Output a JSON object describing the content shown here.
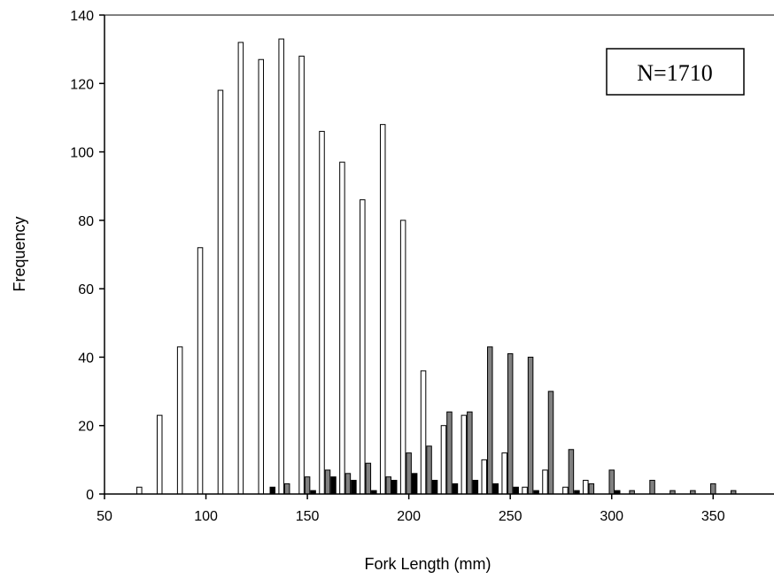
{
  "chart_data": {
    "type": "bar",
    "xlabel": "Fork Length (mm)",
    "ylabel": "Frequency",
    "xlim": [
      50,
      380
    ],
    "ylim": [
      0,
      140
    ],
    "x_ticks": [
      50,
      100,
      150,
      200,
      250,
      300,
      350
    ],
    "y_ticks": [
      0,
      20,
      40,
      60,
      80,
      100,
      120,
      140
    ],
    "grid": false,
    "annotation": "N=1710",
    "series": [
      {
        "color": "#ffffff",
        "x": [
          70,
          80,
          90,
          100,
          110,
          120,
          130,
          140,
          150,
          160,
          170,
          180,
          190,
          200,
          210,
          220,
          230,
          240,
          250,
          260,
          270,
          280,
          290
        ],
        "values": [
          2,
          23,
          43,
          72,
          118,
          132,
          127,
          133,
          128,
          106,
          97,
          86,
          108,
          80,
          36,
          20,
          23,
          10,
          12,
          2,
          7,
          2,
          4
        ]
      },
      {
        "color": "#808080",
        "x": [
          130,
          140,
          150,
          160,
          170,
          180,
          190,
          200,
          210,
          220,
          230,
          240,
          250,
          260,
          270,
          280,
          290,
          300,
          310,
          320,
          330,
          340,
          350,
          360
        ],
        "values": [
          0,
          3,
          5,
          7,
          6,
          9,
          5,
          12,
          14,
          24,
          24,
          43,
          41,
          40,
          30,
          13,
          3,
          7,
          1,
          4,
          1,
          1,
          3,
          1
        ]
      },
      {
        "color": "#000000",
        "x": [
          130,
          140,
          150,
          160,
          170,
          180,
          190,
          200,
          210,
          220,
          230,
          240,
          250,
          260,
          270,
          280,
          290,
          300,
          310,
          320,
          330,
          340,
          350,
          360
        ],
        "values": [
          2,
          0,
          1,
          5,
          4,
          1,
          4,
          6,
          4,
          3,
          4,
          3,
          2,
          1,
          0,
          1,
          0,
          1,
          0,
          0,
          0,
          0,
          0,
          0
        ]
      }
    ]
  }
}
